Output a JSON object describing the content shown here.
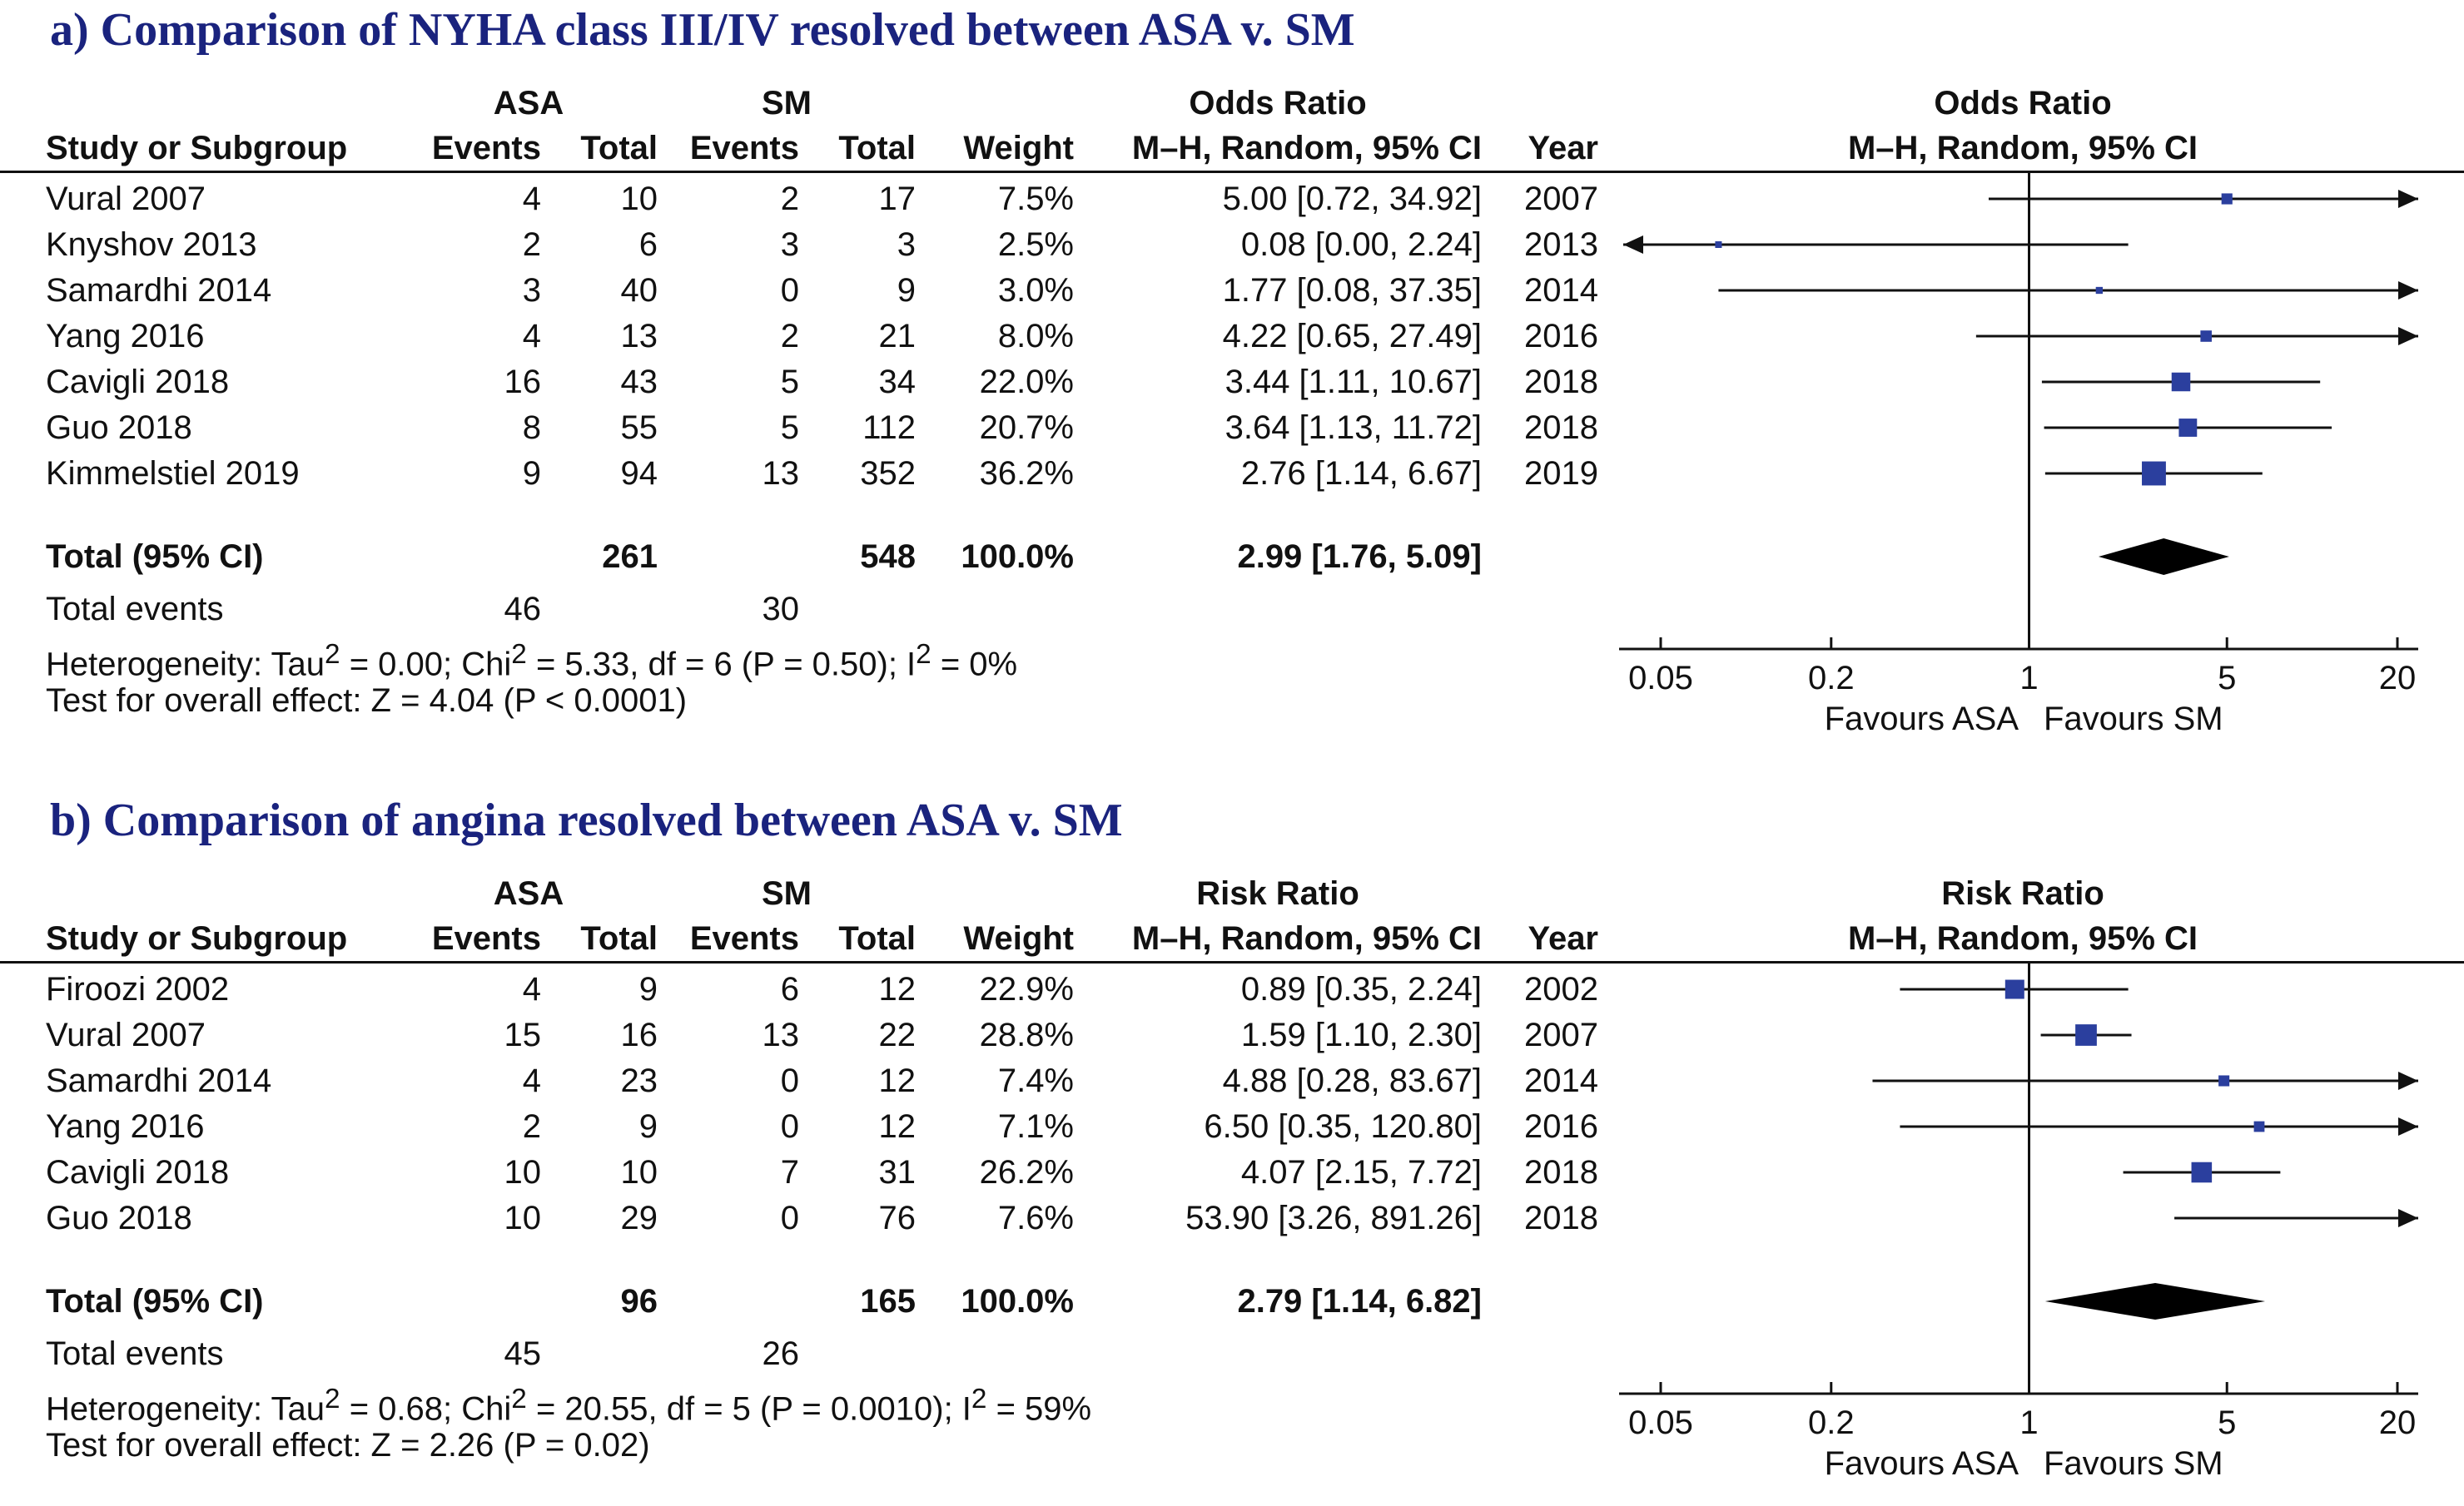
{
  "chart_data": [
    {
      "type": "forest",
      "panel": "a",
      "title": "a) Comparison of NYHA class III/IV resolved between ASA v. SM",
      "headers": {
        "group1": "ASA",
        "group2": "SM",
        "study": "Study or Subgroup",
        "events": "Events",
        "total": "Total",
        "weight": "Weight",
        "effect_title": "Odds Ratio",
        "effect_method": "M–H, Random, 95% CI",
        "year": "Year",
        "plot_title": "Odds Ratio",
        "plot_method": "M–H, Random, 95% CI"
      },
      "studies": [
        {
          "name": "Vural 2007",
          "e1": "4",
          "t1": "10",
          "e2": "2",
          "t2": "17",
          "weight": "7.5%",
          "ci_text": "5.00 [0.72, 34.92]",
          "year": "2007",
          "est": 5.0,
          "lo": 0.72,
          "hi": 34.92,
          "w": 7.5
        },
        {
          "name": "Knyshov 2013",
          "e1": "2",
          "t1": "6",
          "e2": "3",
          "t2": "3",
          "weight": "2.5%",
          "ci_text": "0.08 [0.00, 2.24]",
          "year": "2013",
          "est": 0.08,
          "lo": 0.0,
          "hi": 2.24,
          "w": 2.5
        },
        {
          "name": "Samardhi 2014",
          "e1": "3",
          "t1": "40",
          "e2": "0",
          "t2": "9",
          "weight": "3.0%",
          "ci_text": "1.77 [0.08, 37.35]",
          "year": "2014",
          "est": 1.77,
          "lo": 0.08,
          "hi": 37.35,
          "w": 3.0
        },
        {
          "name": "Yang 2016",
          "e1": "4",
          "t1": "13",
          "e2": "2",
          "t2": "21",
          "weight": "8.0%",
          "ci_text": "4.22 [0.65, 27.49]",
          "year": "2016",
          "est": 4.22,
          "lo": 0.65,
          "hi": 27.49,
          "w": 8.0
        },
        {
          "name": "Cavigli 2018",
          "e1": "16",
          "t1": "43",
          "e2": "5",
          "t2": "34",
          "weight": "22.0%",
          "ci_text": "3.44 [1.11, 10.67]",
          "year": "2018",
          "est": 3.44,
          "lo": 1.11,
          "hi": 10.67,
          "w": 22.0
        },
        {
          "name": "Guo 2018",
          "e1": "8",
          "t1": "55",
          "e2": "5",
          "t2": "112",
          "weight": "20.7%",
          "ci_text": "3.64 [1.13, 11.72]",
          "year": "2018",
          "est": 3.64,
          "lo": 1.13,
          "hi": 11.72,
          "w": 20.7
        },
        {
          "name": "Kimmelstiel 2019",
          "e1": "9",
          "t1": "94",
          "e2": "13",
          "t2": "352",
          "weight": "36.2%",
          "ci_text": "2.76 [1.14, 6.67]",
          "year": "2019",
          "est": 2.76,
          "lo": 1.14,
          "hi": 6.67,
          "w": 36.2
        }
      ],
      "total": {
        "label": "Total (95% CI)",
        "t1": "261",
        "t2": "548",
        "weight": "100.0%",
        "ci_text": "2.99 [1.76, 5.09]",
        "est": 2.99,
        "lo": 1.76,
        "hi": 5.09
      },
      "total_events": {
        "label": "Total events",
        "e1": "46",
        "e2": "30"
      },
      "heterogeneity": {
        "prefix": "Heterogeneity: Tau",
        "mid1": " = 0.00; Chi",
        "mid2": " = 5.33, df = 6 (P = 0.50); I",
        "suffix": " = 0%"
      },
      "overall_effect": "Test for overall effect: Z = 4.04 (P < 0.0001)",
      "axis": {
        "scale": "log",
        "range": [
          0.05,
          20
        ],
        "ticks": [
          0.05,
          0.2,
          1,
          5,
          20
        ],
        "tick_labels": [
          "0.05",
          "0.2",
          "1",
          "5",
          "20"
        ]
      },
      "favours_left": "Favours ASA",
      "favours_right": "Favours SM",
      "marker_color": "#2b3f9e"
    },
    {
      "type": "forest",
      "panel": "b",
      "title": "b) Comparison of angina resolved between ASA v. SM",
      "headers": {
        "group1": "ASA",
        "group2": "SM",
        "study": "Study or Subgroup",
        "events": "Events",
        "total": "Total",
        "weight": "Weight",
        "effect_title": "Risk Ratio",
        "effect_method": "M–H, Random, 95% CI",
        "year": "Year",
        "plot_title": "Risk Ratio",
        "plot_method": "M–H, Random, 95% CI"
      },
      "studies": [
        {
          "name": "Firoozi 2002",
          "e1": "4",
          "t1": "9",
          "e2": "6",
          "t2": "12",
          "weight": "22.9%",
          "ci_text": "0.89 [0.35, 2.24]",
          "year": "2002",
          "est": 0.89,
          "lo": 0.35,
          "hi": 2.24,
          "w": 22.9
        },
        {
          "name": "Vural 2007",
          "e1": "15",
          "t1": "16",
          "e2": "13",
          "t2": "22",
          "weight": "28.8%",
          "ci_text": "1.59 [1.10, 2.30]",
          "year": "2007",
          "est": 1.59,
          "lo": 1.1,
          "hi": 2.3,
          "w": 28.8
        },
        {
          "name": "Samardhi 2014",
          "e1": "4",
          "t1": "23",
          "e2": "0",
          "t2": "12",
          "weight": "7.4%",
          "ci_text": "4.88 [0.28, 83.67]",
          "year": "2014",
          "est": 4.88,
          "lo": 0.28,
          "hi": 83.67,
          "w": 7.4
        },
        {
          "name": "Yang 2016",
          "e1": "2",
          "t1": "9",
          "e2": "0",
          "t2": "12",
          "weight": "7.1%",
          "ci_text": "6.50 [0.35, 120.80]",
          "year": "2016",
          "est": 6.5,
          "lo": 0.35,
          "hi": 120.8,
          "w": 7.1
        },
        {
          "name": "Cavigli 2018",
          "e1": "10",
          "t1": "10",
          "e2": "7",
          "t2": "31",
          "weight": "26.2%",
          "ci_text": "4.07 [2.15, 7.72]",
          "year": "2018",
          "est": 4.07,
          "lo": 2.15,
          "hi": 7.72,
          "w": 26.2
        },
        {
          "name": "Guo 2018",
          "e1": "10",
          "t1": "29",
          "e2": "0",
          "t2": "76",
          "weight": "7.6%",
          "ci_text": "53.90 [3.26, 891.26]",
          "year": "2018",
          "est": 53.9,
          "lo": 3.26,
          "hi": 891.26,
          "w": 7.6
        }
      ],
      "total": {
        "label": "Total (95% CI)",
        "t1": "96",
        "t2": "165",
        "weight": "100.0%",
        "ci_text": "2.79 [1.14, 6.82]",
        "est": 2.79,
        "lo": 1.14,
        "hi": 6.82
      },
      "total_events": {
        "label": "Total events",
        "e1": "45",
        "e2": "26"
      },
      "heterogeneity": {
        "prefix": "Heterogeneity: Tau",
        "mid1": " = 0.68; Chi",
        "mid2": " = 20.55, df = 5 (P = 0.0010); I",
        "suffix": " = 59%"
      },
      "overall_effect": "Test for overall effect: Z = 2.26 (P = 0.02)",
      "axis": {
        "scale": "log",
        "range": [
          0.05,
          20
        ],
        "ticks": [
          0.05,
          0.2,
          1,
          5,
          20
        ],
        "tick_labels": [
          "0.05",
          "0.2",
          "1",
          "5",
          "20"
        ]
      },
      "favours_left": "Favours ASA",
      "favours_right": "Favours SM",
      "marker_color": "#2b3f9e"
    }
  ]
}
